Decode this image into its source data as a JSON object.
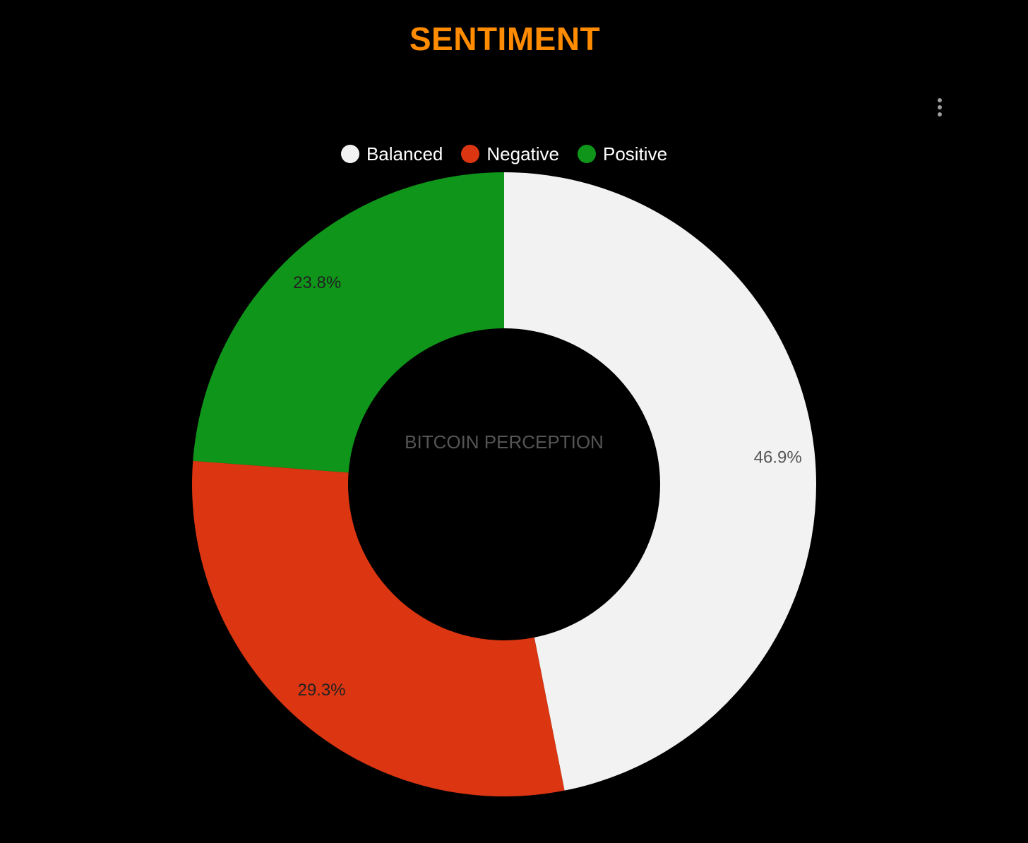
{
  "title": "SENTIMENT",
  "colors": {
    "background": "#000000",
    "title": "#FF8C00",
    "center_label": "#555555",
    "label_dark": "#222222",
    "label_light": "#555555"
  },
  "menu": {
    "icon": "more-vertical-icon"
  },
  "chart_data": {
    "type": "pie",
    "subtype": "donut",
    "center_label": "BITCOIN PERCEPTION",
    "legend_position": "top",
    "slices": [
      {
        "name": "Balanced",
        "value": 46.9,
        "label": "46.9%",
        "color": "#F2F2F2"
      },
      {
        "name": "Negative",
        "value": 29.3,
        "label": "29.3%",
        "color": "#DB3611"
      },
      {
        "name": "Positive",
        "value": 23.8,
        "label": "23.8%",
        "color": "#0F961A"
      }
    ]
  }
}
